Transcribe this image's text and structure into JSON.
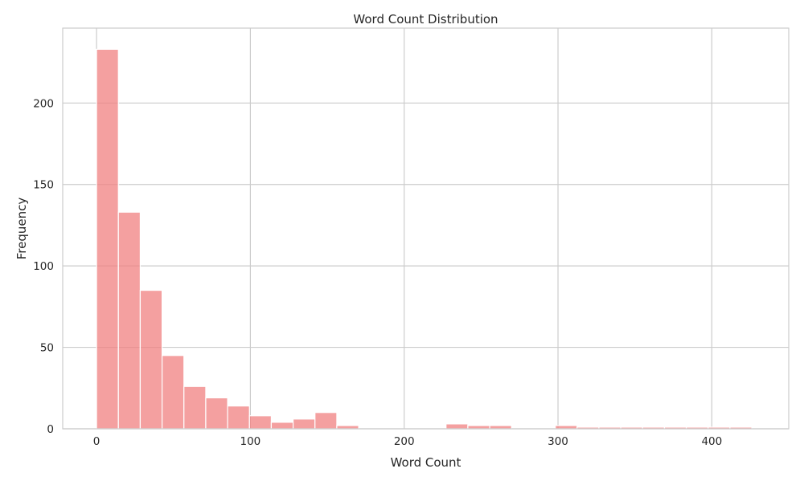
{
  "chart_data": {
    "type": "histogram",
    "title": "Word Count Distribution",
    "xlabel": "Word Count",
    "ylabel": "Frequency",
    "xlim": [
      -22,
      450
    ],
    "ylim": [
      0,
      246
    ],
    "xticks": [
      0,
      100,
      200,
      300,
      400
    ],
    "yticks": [
      0,
      50,
      100,
      150,
      200
    ],
    "bin_width": 14.2,
    "bin_start": 0,
    "counts": [
      233,
      133,
      85,
      45,
      26,
      19,
      14,
      8,
      4,
      6,
      10,
      2,
      0,
      0,
      0,
      0,
      3,
      2,
      2,
      0,
      0,
      2,
      1,
      1,
      1,
      1,
      1,
      1,
      1,
      1
    ],
    "grid": true,
    "legend": null,
    "colors": {
      "bar_fill": "#f08080",
      "bar_opacity": 0.75,
      "bar_edge": "#ffffff",
      "grid": "#cccccc",
      "spine": "#cccccc",
      "text": "#262626"
    }
  }
}
